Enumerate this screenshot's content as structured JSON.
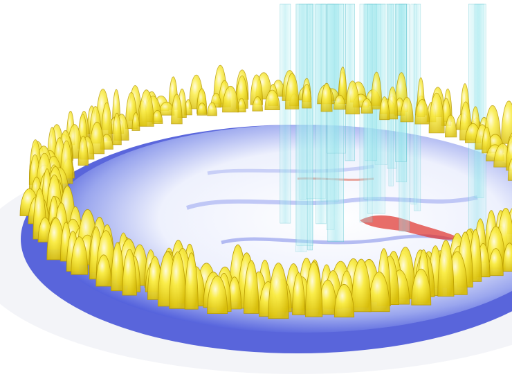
{
  "image": {
    "kind": "3D flow visualization render",
    "background": "#ffffff",
    "colors": {
      "isosurface_yellow": "#f2e21b",
      "isosurface_edge": "#b89a00",
      "plane_blue": "#3d4bd6",
      "plane_light": "#dfe4fb",
      "plane_red": "#e0302a",
      "column_cyan": "#8fe2ea"
    }
  }
}
